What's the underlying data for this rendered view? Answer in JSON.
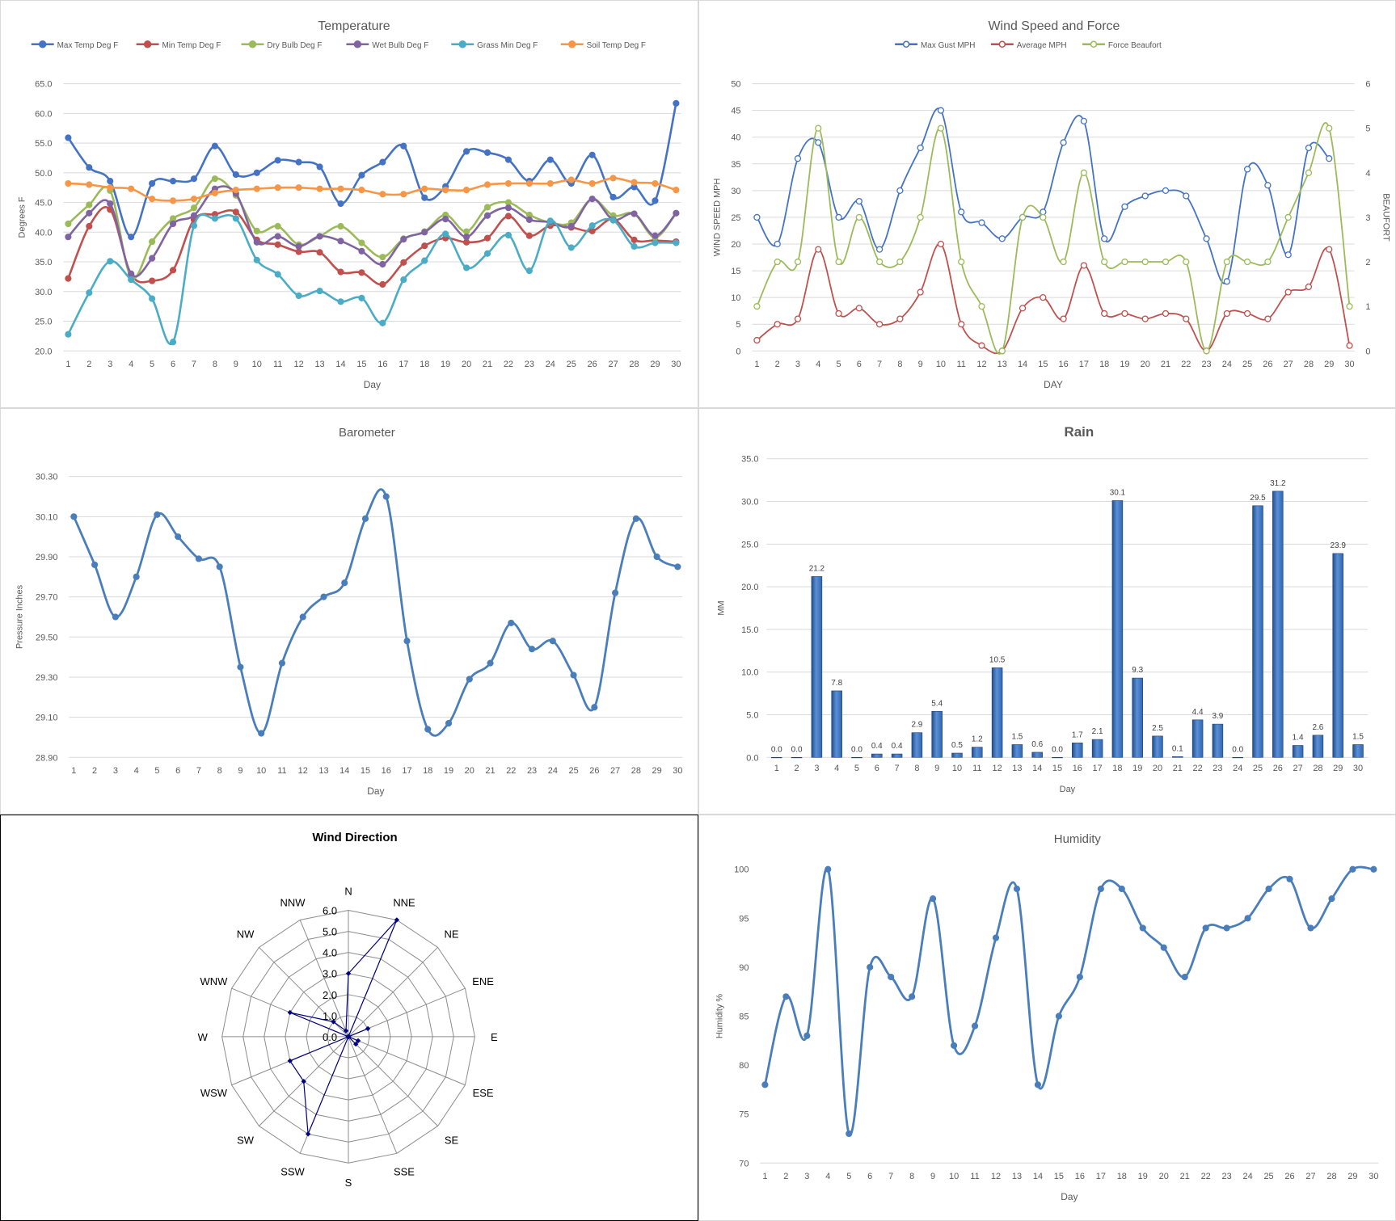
{
  "chart_data": [
    {
      "id": "temperature",
      "type": "line",
      "title": "Temperature",
      "xlabel": "Day",
      "ylabel": "Degrees F",
      "ylim": [
        20,
        65
      ],
      "yticks": [
        "20.0",
        "25.0",
        "30.0",
        "35.0",
        "40.0",
        "45.0",
        "50.0",
        "55.0",
        "60.0",
        "65.0"
      ],
      "categories": [
        "1",
        "2",
        "3",
        "4",
        "5",
        "6",
        "7",
        "8",
        "9",
        "10",
        "11",
        "12",
        "13",
        "14",
        "15",
        "16",
        "17",
        "18",
        "19",
        "20",
        "21",
        "22",
        "23",
        "24",
        "25",
        "26",
        "27",
        "28",
        "29",
        "30"
      ],
      "grid": true,
      "legend": "top",
      "series": [
        {
          "name": "Max Temp Deg F",
          "color": "#4472c4",
          "values": [
            55.9,
            50.9,
            48.6,
            39.2,
            48.2,
            48.6,
            49.0,
            54.5,
            49.7,
            50.0,
            52.1,
            51.8,
            51.0,
            44.8,
            49.6,
            51.8,
            54.5,
            45.8,
            47.7,
            53.6,
            53.4,
            52.2,
            48.6,
            52.2,
            48.2,
            53.0,
            45.9,
            47.6,
            45.3,
            61.7
          ]
        },
        {
          "name": "Min Temp Deg F",
          "color": "#c0504d",
          "values": [
            32.2,
            41.0,
            43.8,
            32.9,
            31.8,
            33.6,
            42.1,
            43.0,
            43.4,
            38.7,
            37.9,
            36.7,
            36.6,
            33.3,
            33.2,
            31.2,
            34.9,
            37.7,
            39.0,
            38.3,
            39.0,
            42.7,
            39.4,
            41.1,
            40.8,
            40.2,
            42.2,
            38.7,
            38.6,
            38.4
          ]
        },
        {
          "name": "Dry Bulb Deg F",
          "color": "#9bbb59",
          "values": [
            41.4,
            44.6,
            47.0,
            32.4,
            38.4,
            42.3,
            44.1,
            49.0,
            46.2,
            40.2,
            41.0,
            37.9,
            39.3,
            41.0,
            38.2,
            35.8,
            38.9,
            40.1,
            42.9,
            40.1,
            44.2,
            45.0,
            42.9,
            41.6,
            41.6,
            45.6,
            42.8,
            43.1,
            39.1,
            43.2
          ]
        },
        {
          "name": "Wet Bulb Deg F",
          "color": "#8064a2",
          "values": [
            39.2,
            43.2,
            44.8,
            33.0,
            35.6,
            41.4,
            42.8,
            47.3,
            46.5,
            38.3,
            39.3,
            37.6,
            39.3,
            38.5,
            36.8,
            34.6,
            38.8,
            40.0,
            42.2,
            39.2,
            42.8,
            44.1,
            42.1,
            41.7,
            41.0,
            45.6,
            42.1,
            43.1,
            39.4,
            43.2
          ]
        },
        {
          "name": "Grass Min Deg F",
          "color": "#4bacc6",
          "values": [
            22.8,
            29.8,
            35.1,
            32.0,
            28.8,
            21.5,
            41.1,
            42.3,
            42.3,
            35.3,
            32.9,
            29.3,
            30.1,
            28.3,
            28.9,
            24.7,
            32.0,
            35.2,
            39.7,
            34.0,
            36.4,
            39.5,
            33.5,
            41.9,
            37.4,
            41.1,
            42.0,
            37.6,
            38.2,
            38.2
          ]
        },
        {
          "name": "Soil Temp Deg F",
          "color": "#f79646",
          "values": [
            48.2,
            48.0,
            47.5,
            47.3,
            45.6,
            45.3,
            45.6,
            46.6,
            47.1,
            47.3,
            47.5,
            47.5,
            47.3,
            47.3,
            47.1,
            46.4,
            46.4,
            47.3,
            47.1,
            47.1,
            48.0,
            48.2,
            48.2,
            48.2,
            48.8,
            48.2,
            49.1,
            48.4,
            48.2,
            47.1
          ]
        }
      ]
    },
    {
      "id": "wind",
      "type": "line",
      "title": "Wind Speed and Force",
      "xlabel": "DAY",
      "ylabel": "WIND SPEED MPH",
      "y2label": "BEAUFORT",
      "ylim": [
        0,
        50
      ],
      "y2lim": [
        0,
        6
      ],
      "yticks": [
        "0",
        "5",
        "10",
        "15",
        "20",
        "25",
        "30",
        "35",
        "40",
        "45",
        "50"
      ],
      "y2ticks": [
        "0",
        "1",
        "2",
        "3",
        "4",
        "5",
        "6"
      ],
      "categories": [
        "1",
        "2",
        "3",
        "4",
        "5",
        "6",
        "7",
        "8",
        "9",
        "10",
        "11",
        "12",
        "13",
        "14",
        "15",
        "16",
        "17",
        "18",
        "19",
        "20",
        "21",
        "22",
        "23",
        "24",
        "25",
        "26",
        "27",
        "28",
        "29",
        "30"
      ],
      "grid": true,
      "legend": "top",
      "series": [
        {
          "name": "Max Gust MPH",
          "color": "#4472c4",
          "axis": "left",
          "values": [
            25,
            20,
            36,
            39,
            25,
            28,
            19,
            30,
            38,
            45,
            26,
            24,
            21,
            25,
            26,
            39,
            43,
            21,
            27,
            29,
            30,
            29,
            21,
            13,
            34,
            31,
            18,
            38,
            36,
            null
          ]
        },
        {
          "name": "Average MPH",
          "color": "#c0504d",
          "axis": "left",
          "values": [
            2,
            5,
            6,
            19,
            7,
            8,
            5,
            6,
            11,
            20,
            5,
            1,
            0,
            8,
            10,
            6,
            16,
            7,
            7,
            6,
            7,
            6,
            0,
            7,
            7,
            6,
            11,
            12,
            19,
            1
          ]
        },
        {
          "name": "Force Beaufort",
          "color": "#9bbb59",
          "axis": "right",
          "values": [
            1,
            2,
            2,
            5,
            2,
            3,
            2,
            2,
            3,
            5,
            2,
            1,
            0,
            3,
            3,
            2,
            4,
            2,
            2,
            2,
            2,
            2,
            0,
            2,
            2,
            2,
            3,
            4,
            5,
            1
          ]
        }
      ]
    },
    {
      "id": "barometer",
      "type": "line",
      "title": "Barometer",
      "xlabel": "Day",
      "ylabel": "Pressure Inches",
      "ylim": [
        28.9,
        30.3
      ],
      "yticks": [
        "28.90",
        "29.10",
        "29.30",
        "29.50",
        "29.70",
        "29.90",
        "30.10",
        "30.30"
      ],
      "categories": [
        "1",
        "2",
        "3",
        "4",
        "5",
        "6",
        "7",
        "8",
        "9",
        "10",
        "11",
        "12",
        "13",
        "14",
        "15",
        "16",
        "17",
        "18",
        "19",
        "20",
        "21",
        "22",
        "23",
        "24",
        "25",
        "26",
        "27",
        "28",
        "29",
        "30"
      ],
      "grid": true,
      "series": [
        {
          "name": "",
          "color": "#4a7ebb",
          "values": [
            30.1,
            29.86,
            29.6,
            29.8,
            30.11,
            30.0,
            29.89,
            29.85,
            29.35,
            29.02,
            29.37,
            29.6,
            29.7,
            29.77,
            30.09,
            30.2,
            29.48,
            29.04,
            29.07,
            29.29,
            29.37,
            29.57,
            29.44,
            29.48,
            29.31,
            29.15,
            29.72,
            30.09,
            29.9,
            29.85
          ]
        }
      ]
    },
    {
      "id": "rain",
      "type": "bar",
      "title": "Rain",
      "xlabel": "Day",
      "ylabel": "MM",
      "ylim": [
        0,
        35
      ],
      "yticks": [
        "0.0",
        "5.0",
        "10.0",
        "15.0",
        "20.0",
        "25.0",
        "30.0",
        "35.0"
      ],
      "categories": [
        "1",
        "2",
        "3",
        "4",
        "5",
        "6",
        "7",
        "8",
        "9",
        "10",
        "11",
        "12",
        "13",
        "14",
        "15",
        "16",
        "17",
        "18",
        "19",
        "20",
        "21",
        "22",
        "23",
        "24",
        "25",
        "26",
        "27",
        "28",
        "29",
        "30"
      ],
      "grid": true,
      "values": [
        0.0,
        0.0,
        21.2,
        7.8,
        0.0,
        0.4,
        0.4,
        2.9,
        5.4,
        0.5,
        1.2,
        10.5,
        1.5,
        0.6,
        0.0,
        1.7,
        2.1,
        30.1,
        9.3,
        2.5,
        0.1,
        4.4,
        3.9,
        0.0,
        29.5,
        31.2,
        1.4,
        2.6,
        23.9,
        1.5
      ],
      "labels": [
        "0.0",
        "0.0",
        "21.2",
        "7.8",
        "0.0",
        "0.4",
        "0.4",
        "2.9",
        "5.4",
        "0.5",
        "1.2",
        "10.5",
        "1.5",
        "0.6",
        "0.0",
        "1.7",
        "2.1",
        "30.1",
        "9.3",
        "2.5",
        "0.1",
        "4.4",
        "3.9",
        "0.0",
        "29.5",
        "31.2",
        "1.4",
        "2.6",
        "23.9",
        "1.5"
      ]
    },
    {
      "id": "wind_direction",
      "type": "radar",
      "title": "Wind Direction",
      "rlim": [
        0,
        6
      ],
      "rticks": [
        "0.0",
        "1.0",
        "2.0",
        "3.0",
        "4.0",
        "5.0",
        "6.0"
      ],
      "categories": [
        "N",
        "NNE",
        "NE",
        "ENE",
        "E",
        "ESE",
        "SE",
        "SSE",
        "S",
        "SSW",
        "SW",
        "WSW",
        "W",
        "WNW",
        "NW",
        "NNW"
      ],
      "color": "#000080",
      "values": [
        3,
        6,
        0,
        1,
        0,
        0.5,
        0.5,
        0,
        0,
        5,
        3,
        3,
        0,
        3,
        1,
        0.3
      ]
    },
    {
      "id": "humidity",
      "type": "line",
      "title": "Humidity",
      "xlabel": "Day",
      "ylabel": "Humidity %",
      "ylim": [
        70,
        100
      ],
      "yticks": [
        "70",
        "75",
        "80",
        "85",
        "90",
        "95",
        "100"
      ],
      "categories": [
        "1",
        "2",
        "3",
        "4",
        "5",
        "6",
        "7",
        "8",
        "9",
        "10",
        "11",
        "12",
        "13",
        "14",
        "15",
        "16",
        "17",
        "18",
        "19",
        "20",
        "21",
        "22",
        "23",
        "24",
        "25",
        "26",
        "27",
        "28",
        "29",
        "30"
      ],
      "grid": false,
      "series": [
        {
          "name": "",
          "color": "#4a7ebb",
          "values": [
            78,
            87,
            83,
            100,
            73,
            90,
            89,
            87,
            97,
            82,
            84,
            93,
            98,
            78,
            85,
            89,
            98,
            98,
            94,
            92,
            89,
            94,
            94,
            95,
            98,
            99,
            94,
            97,
            100,
            100
          ]
        }
      ]
    }
  ]
}
